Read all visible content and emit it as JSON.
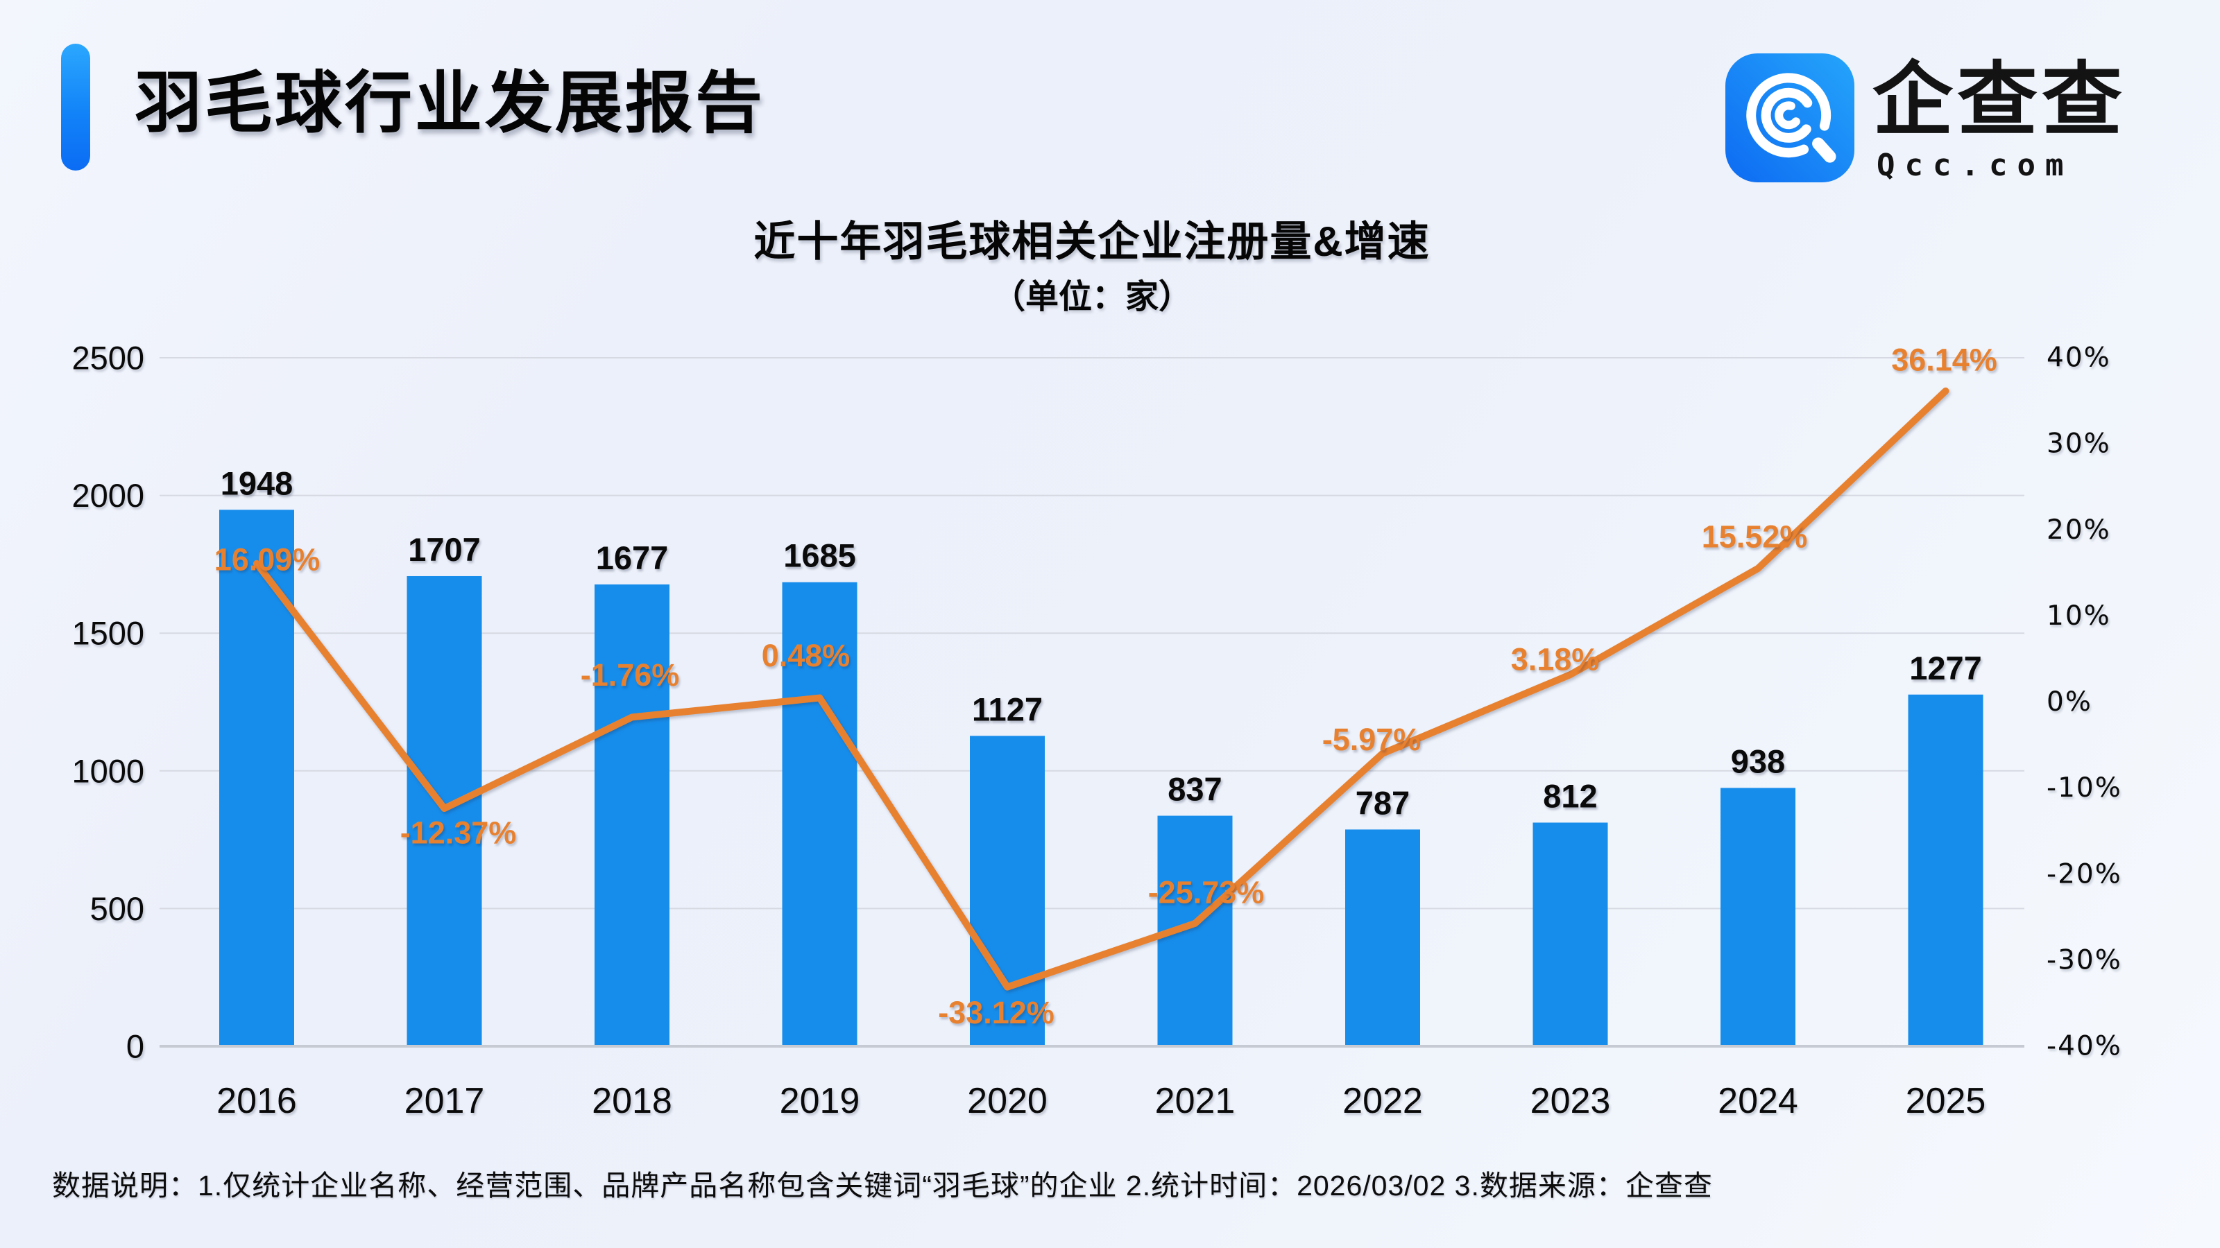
{
  "header": {
    "title": "羽毛球行业发展报告",
    "logo_text": "企查查",
    "logo_domain": "Qcc.com"
  },
  "chart": {
    "title": "近十年羽毛球相关企业注册量&增速",
    "subtitle": "（单位：家）"
  },
  "footer": {
    "note": "数据说明：1.仅统计企业名称、经营范围、品牌产品名称包含关键词“羽毛球”的企业  2.统计时间：2026/03/02  3.数据来源：企查查"
  },
  "chart_data": {
    "type": "bar",
    "title": "近十年羽毛球相关企业注册量&增速",
    "subtitle": "（单位：家）",
    "unit": "家",
    "categories": [
      "2016",
      "2017",
      "2018",
      "2019",
      "2020",
      "2021",
      "2022",
      "2023",
      "2024",
      "2025"
    ],
    "series": [
      {
        "name": "注册量",
        "type": "bar",
        "values": [
          1948,
          1707,
          1677,
          1685,
          1127,
          837,
          787,
          812,
          938,
          1277
        ]
      },
      {
        "name": "增速",
        "type": "line",
        "values": [
          16.09,
          -12.37,
          -1.76,
          0.48,
          -33.12,
          -25.73,
          -5.97,
          3.18,
          15.52,
          36.14
        ],
        "labels": [
          "16.09%",
          "-12.37%",
          "-1.76%",
          "0.48%",
          "-33.12%",
          "-25.73%",
          "-5.97%",
          "3.18%",
          "15.52%",
          "36.14%"
        ]
      }
    ],
    "left_axis": {
      "ticks": [
        "2500",
        "2000",
        "1500",
        "1000",
        "500",
        "0"
      ],
      "min": 0,
      "max": 2500
    },
    "right_axis": {
      "ticks": [
        "40%",
        "30%",
        "20%",
        "10%",
        "0%",
        "-10%",
        "-20%",
        "-30%",
        "-40%"
      ],
      "min": -40,
      "max": 40
    },
    "grid": true,
    "legend": false,
    "colors": {
      "bar": "#178deb",
      "line": "#e8812f",
      "text": "#0a0a0a",
      "grid": "#d6d9e1",
      "axis": "#c6cad3",
      "accent_top": "#2ba7fe",
      "accent_bottom": "#0b6cf4",
      "logo_dark": "#0d6bf2",
      "logo_light": "#25a5fb"
    }
  }
}
